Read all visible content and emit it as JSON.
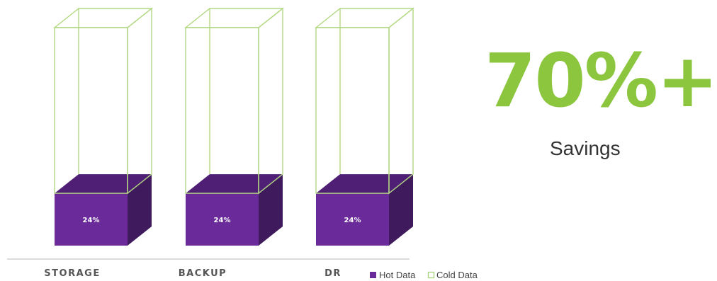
{
  "chart_data": {
    "type": "bar",
    "categories": [
      "STORAGE",
      "BACKUP",
      "DR"
    ],
    "series": [
      {
        "name": "Hot Data",
        "values": [
          24,
          24,
          24
        ],
        "labels": [
          "24%",
          "24%",
          "24%"
        ],
        "color": "#6a2a9a"
      },
      {
        "name": "Cold Data",
        "values": [
          76,
          76,
          76
        ],
        "color": "#a8d27a"
      }
    ],
    "ylim": [
      0,
      100
    ],
    "stacked": true,
    "legend": "bottom-right"
  },
  "headline": {
    "value": "70%+",
    "caption": "Savings"
  }
}
